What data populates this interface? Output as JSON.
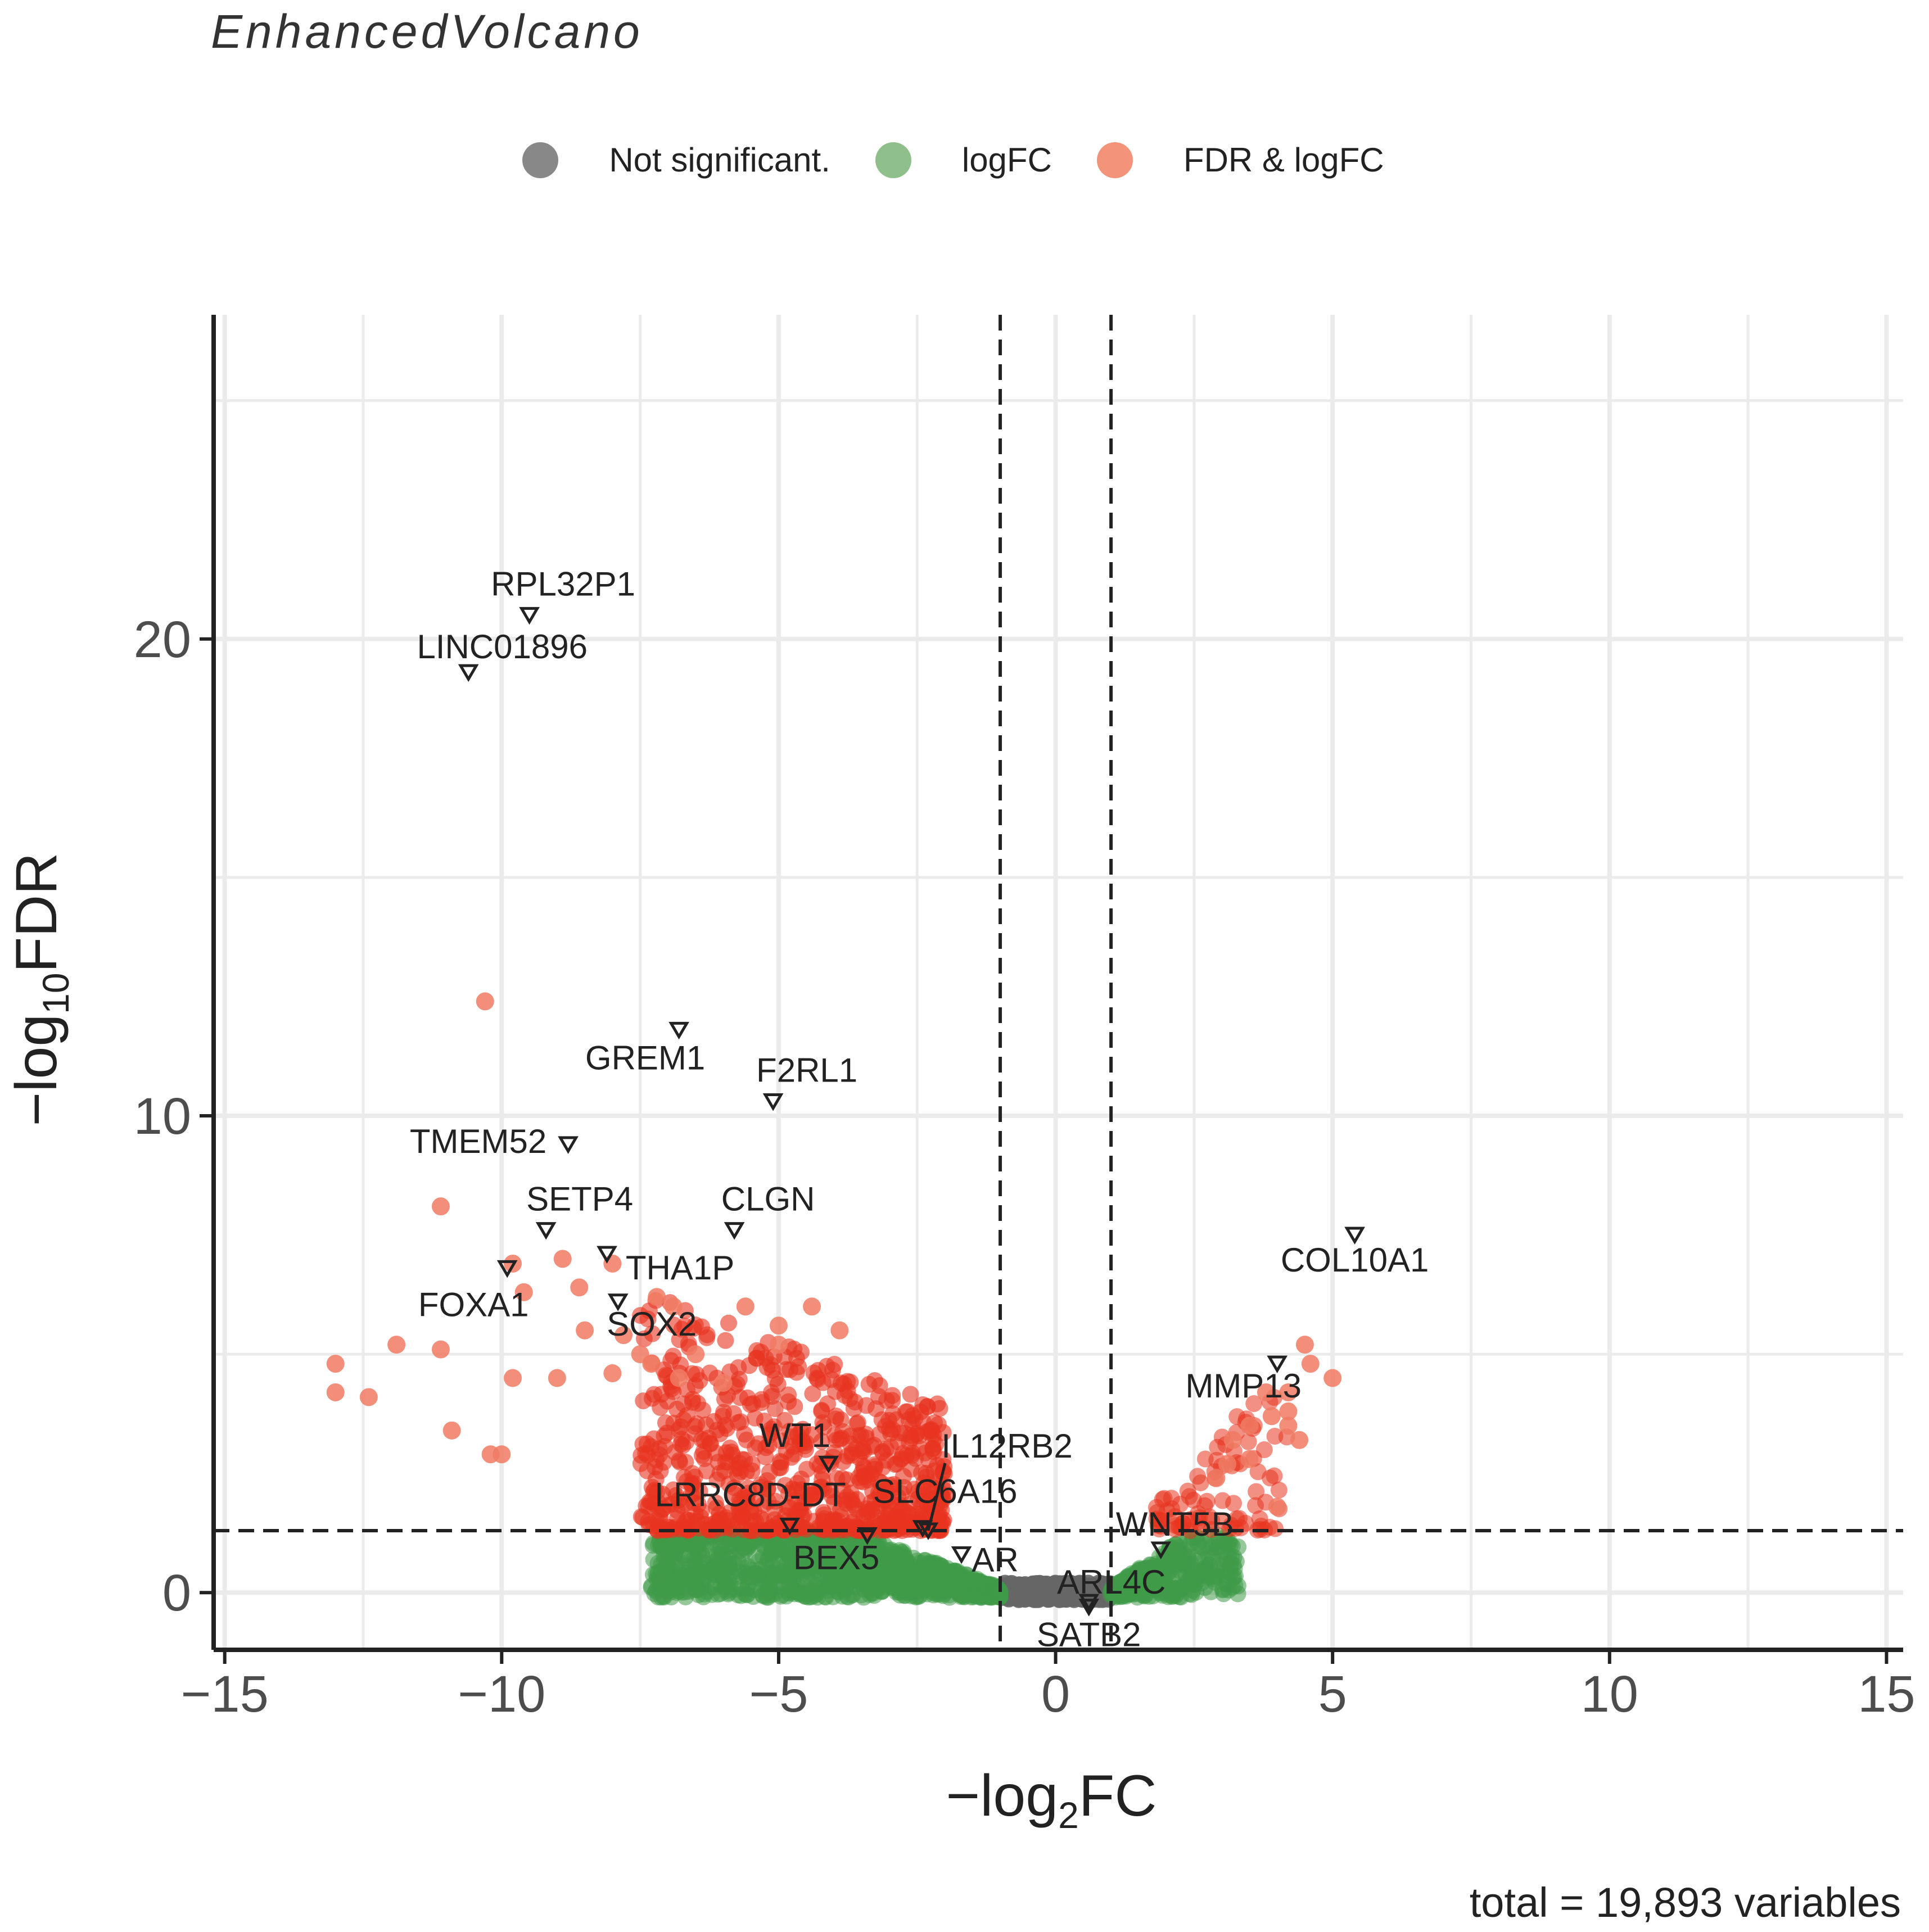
{
  "title": "EnhancedVolcano",
  "legend": [
    {
      "label": "Not significant.",
      "color": "#888888"
    },
    {
      "label": "logFC",
      "color": "#8fbf8a"
    },
    {
      "label": "FDR & logFC",
      "color": "#f2937a"
    }
  ],
  "caption": "total = 19,893 variables",
  "chart_data": {
    "type": "scatter",
    "title": "EnhancedVolcano",
    "xlabel_main": "−log",
    "xlabel_sub": "2",
    "xlabel_tail": "FC",
    "ylabel_main": "−log",
    "ylabel_sub": "10",
    "ylabel_tail": "FDR",
    "xlim": [
      -15.2,
      15.3
    ],
    "ylim": [
      -1.2,
      26.8
    ],
    "xticks": [
      -15,
      -10,
      -5,
      0,
      5,
      10,
      15
    ],
    "xtick_labels": [
      "−15",
      "−10",
      "−5",
      "0",
      "5",
      "10",
      "15"
    ],
    "yticks": [
      0,
      10,
      20
    ],
    "ytick_labels": [
      "0",
      "10",
      "20"
    ],
    "fc_cutoffs": [
      -1,
      1
    ],
    "fdr_cutoff": 1.3,
    "colors": {
      "ns": "#666666",
      "logfc": "#3f9a49",
      "both": "#e8341f",
      "both_light": "#f07a62"
    },
    "labeled_genes": [
      {
        "gene": "RPL32P1",
        "x": -9.5,
        "y": 20.5
      },
      {
        "gene": "LINC01896",
        "x": -10.6,
        "y": 19.3
      },
      {
        "gene": "GREM1",
        "x": -6.8,
        "y": 11.8
      },
      {
        "gene": "F2RL1",
        "x": -5.1,
        "y": 10.3
      },
      {
        "gene": "TMEM52",
        "x": -8.8,
        "y": 9.4
      },
      {
        "gene": "SETP4",
        "x": -9.2,
        "y": 7.6
      },
      {
        "gene": "CLGN",
        "x": -5.8,
        "y": 7.6
      },
      {
        "gene": "THA1P",
        "x": -8.1,
        "y": 7.1
      },
      {
        "gene": "FOXA1",
        "x": -9.9,
        "y": 6.8
      },
      {
        "gene": "SOX2",
        "x": -7.9,
        "y": 6.1
      },
      {
        "gene": "COL10A1",
        "x": 5.4,
        "y": 7.5
      },
      {
        "gene": "MMP13",
        "x": 4.0,
        "y": 4.8
      },
      {
        "gene": "WT1",
        "x": -4.1,
        "y": 2.7
      },
      {
        "gene": "IL12RB2",
        "x": -2.3,
        "y": 1.3
      },
      {
        "gene": "LRRC8D-DT",
        "x": -4.8,
        "y": 1.4
      },
      {
        "gene": "SLC6A16",
        "x": -2.4,
        "y": 1.35
      },
      {
        "gene": "BEX5",
        "x": -3.4,
        "y": 1.2
      },
      {
        "gene": "WNT5B",
        "x": 1.9,
        "y": 0.9
      },
      {
        "gene": "AR",
        "x": -1.7,
        "y": 0.8
      },
      {
        "gene": "ARL4C",
        "x": 0.6,
        "y": -0.2
      },
      {
        "gene": "SATB2",
        "x": 0.6,
        "y": -0.3
      }
    ]
  }
}
